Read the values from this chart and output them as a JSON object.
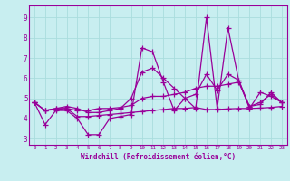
{
  "xlabel": "Windchill (Refroidissement éolien,°C)",
  "ylabel": "",
  "xlim": [
    -0.5,
    23.5
  ],
  "ylim": [
    2.7,
    9.6
  ],
  "background_color": "#c8eef0",
  "line_color": "#990099",
  "grid_color": "#aadddd",
  "xticks": [
    0,
    1,
    2,
    3,
    4,
    5,
    6,
    7,
    8,
    9,
    10,
    11,
    12,
    13,
    14,
    15,
    16,
    17,
    18,
    19,
    20,
    21,
    22,
    23
  ],
  "yticks": [
    3,
    4,
    5,
    6,
    7,
    8,
    9
  ],
  "series": [
    [
      4.8,
      3.7,
      4.4,
      4.4,
      4.0,
      3.2,
      3.2,
      4.0,
      4.1,
      4.2,
      7.5,
      7.3,
      5.8,
      4.4,
      5.0,
      4.5,
      9.0,
      4.5,
      8.5,
      5.9,
      4.5,
      5.3,
      5.1,
      4.8
    ],
    [
      4.8,
      4.4,
      4.45,
      4.5,
      4.1,
      4.1,
      4.15,
      4.2,
      4.25,
      4.3,
      4.35,
      4.4,
      4.45,
      4.5,
      4.5,
      4.55,
      4.45,
      4.45,
      4.48,
      4.5,
      4.5,
      4.52,
      4.55,
      4.6
    ],
    [
      4.8,
      4.4,
      4.5,
      4.5,
      4.4,
      4.4,
      4.5,
      4.5,
      4.55,
      4.65,
      5.0,
      5.1,
      5.1,
      5.2,
      5.3,
      5.5,
      5.6,
      5.6,
      5.7,
      5.8,
      4.6,
      4.7,
      5.3,
      4.8
    ],
    [
      4.8,
      4.4,
      4.5,
      4.6,
      4.5,
      4.3,
      4.3,
      4.4,
      4.5,
      5.0,
      6.3,
      6.5,
      6.0,
      5.5,
      5.0,
      5.2,
      6.2,
      5.4,
      6.2,
      5.9,
      4.6,
      4.8,
      5.2,
      4.8
    ]
  ]
}
